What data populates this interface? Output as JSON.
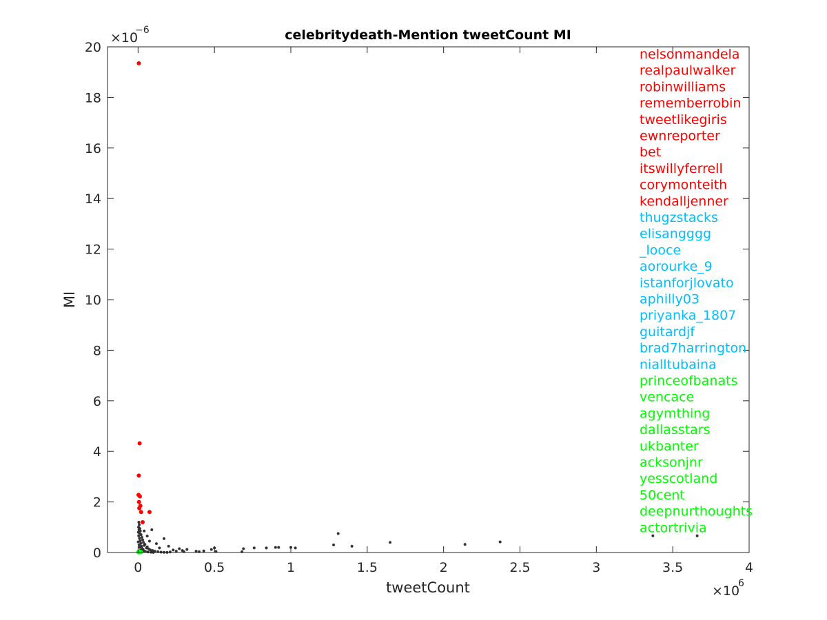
{
  "chart_data": {
    "type": "scatter",
    "title": "celebritydeath-Mention tweetCount MI",
    "xlabel": "tweetCount",
    "ylabel": "MI",
    "x_exponent_base": "×10",
    "x_exponent_power": "6",
    "y_exponent_base": "×10",
    "y_exponent_power": "−6",
    "xlim": [
      -200000,
      4000000
    ],
    "ylim": [
      0,
      2e-05
    ],
    "x_ticks": [
      0,
      500000,
      1000000,
      1500000,
      2000000,
      2500000,
      3000000,
      3500000,
      4000000
    ],
    "x_tick_labels": [
      "0",
      "0.5",
      "1",
      "1.5",
      "2",
      "2.5",
      "3",
      "3.5",
      "4"
    ],
    "y_ticks": [
      0,
      2e-06,
      4e-06,
      6e-06,
      8e-06,
      1e-05,
      1.2e-05,
      1.4e-05,
      1.6e-05,
      1.8e-05,
      2e-05
    ],
    "y_tick_labels": [
      "0",
      "2",
      "4",
      "6",
      "8",
      "10",
      "12",
      "14",
      "16",
      "18",
      "20"
    ],
    "grid": false,
    "colors": {
      "red": "#ff0000",
      "cyan": "#00bfff",
      "green": "#00ff00",
      "gray": "#333333"
    },
    "series": [
      {
        "color": "#333333",
        "points": [
          [
            5000,
            1.2e-06
          ],
          [
            8000,
            1.1e-06
          ],
          [
            3000,
            1e-06
          ],
          [
            12000,
            9.5e-07
          ],
          [
            6000,
            9e-07
          ],
          [
            15000,
            8.5e-07
          ],
          [
            2000,
            8e-07
          ],
          [
            10000,
            7.6e-07
          ],
          [
            20000,
            7e-07
          ],
          [
            4000,
            6.6e-07
          ],
          [
            25000,
            6e-07
          ],
          [
            9000,
            5.6e-07
          ],
          [
            30000,
            5e-07
          ],
          [
            14000,
            4.6e-07
          ],
          [
            1000,
            4.2e-07
          ],
          [
            35000,
            4e-07
          ],
          [
            18000,
            3.6e-07
          ],
          [
            45000,
            3.2e-07
          ],
          [
            7000,
            3e-07
          ],
          [
            40000,
            2.8e-07
          ],
          [
            22000,
            2.5e-07
          ],
          [
            60000,
            2.2e-07
          ],
          [
            11000,
            2e-07
          ],
          [
            55000,
            1.8e-07
          ],
          [
            27000,
            1.6e-07
          ],
          [
            70000,
            1.4e-07
          ],
          [
            33000,
            1.2e-07
          ],
          [
            80000,
            1e-07
          ],
          [
            16000,
            9e-08
          ],
          [
            95000,
            8e-08
          ],
          [
            38000,
            6e-08
          ],
          [
            110000,
            5e-08
          ],
          [
            48000,
            4e-08
          ],
          [
            130000,
            3e-08
          ],
          [
            65000,
            2e-08
          ],
          [
            150000,
            1.5e-08
          ],
          [
            85000,
            1e-08
          ],
          [
            170000,
            8e-09
          ],
          [
            100000,
            5e-09
          ],
          [
            190000,
            3e-09
          ],
          [
            40000,
            8.5e-07
          ],
          [
            60000,
            6.5e-07
          ],
          [
            90000,
            9e-07
          ],
          [
            75000,
            4.5e-07
          ],
          [
            120000,
            3.5e-07
          ],
          [
            170000,
            5.5e-07
          ],
          [
            140000,
            1.8e-07
          ],
          [
            200000,
            2.5e-07
          ],
          [
            230000,
            1e-07
          ],
          [
            250000,
            5e-08
          ],
          [
            270000,
            1.5e-07
          ],
          [
            290000,
            8e-08
          ],
          [
            320000,
            1.2e-07
          ],
          [
            300000,
            3e-08
          ],
          [
            210000,
            2e-08
          ],
          [
            380000,
            5e-08
          ],
          [
            400000,
            3e-08
          ],
          [
            430000,
            6e-08
          ],
          [
            480000,
            1.2e-07
          ],
          [
            500000,
            1.8e-07
          ],
          [
            510000,
            4e-08
          ],
          [
            680000,
            3e-08
          ],
          [
            690000,
            1.5e-07
          ],
          [
            760000,
            1.8e-07
          ],
          [
            840000,
            1.8e-07
          ],
          [
            900000,
            2e-07
          ],
          [
            920000,
            2e-07
          ],
          [
            1000000,
            2e-07
          ],
          [
            1030000,
            1.8e-07
          ],
          [
            1280000,
            3e-07
          ],
          [
            1310000,
            7.5e-07
          ],
          [
            1400000,
            2.5e-07
          ],
          [
            1650000,
            4e-07
          ],
          [
            2140000,
            3.2e-07
          ],
          [
            2370000,
            4.2e-07
          ],
          [
            3370000,
            6.6e-07
          ],
          [
            3660000,
            6.6e-07
          ]
        ]
      },
      {
        "color": "#ff0000",
        "points": [
          [
            5000,
            1.935e-05
          ],
          [
            10000,
            4.32e-06
          ],
          [
            5000,
            3.04e-06
          ],
          [
            3000,
            2.28e-06
          ],
          [
            12000,
            2.22e-06
          ],
          [
            6000,
            2e-06
          ],
          [
            15000,
            1.85e-06
          ],
          [
            8000,
            1.75e-06
          ],
          [
            20000,
            1.6e-06
          ],
          [
            75000,
            1.6e-06
          ],
          [
            30000,
            1.2e-06
          ]
        ]
      },
      {
        "color": "#00ff00",
        "points": [
          [
            1000,
            2e-08
          ],
          [
            3000,
            1e-08
          ],
          [
            5000,
            3e-08
          ],
          [
            7000,
            1e-08
          ],
          [
            9000,
            2e-08
          ],
          [
            11000,
            1e-08
          ],
          [
            13000,
            3e-08
          ],
          [
            15000,
            1e-08
          ],
          [
            17000,
            2e-08
          ],
          [
            19000,
            1e-08
          ]
        ]
      }
    ],
    "annotations": [
      {
        "text": "nelsonmandela",
        "color": "#ff0000"
      },
      {
        "text": "realpaulwalker",
        "color": "#ff0000"
      },
      {
        "text": "robinwilliams",
        "color": "#ff0000"
      },
      {
        "text": "rememberrobin",
        "color": "#ff0000"
      },
      {
        "text": "tweetlikegiris",
        "color": "#ff0000"
      },
      {
        "text": "ewnreporter",
        "color": "#ff0000"
      },
      {
        "text": "bet",
        "color": "#ff0000"
      },
      {
        "text": "itswillyferrell",
        "color": "#ff0000"
      },
      {
        "text": "corymonteith",
        "color": "#ff0000"
      },
      {
        "text": "kendalljenner",
        "color": "#ff0000"
      },
      {
        "text": "thugzstacks",
        "color": "#00bfff"
      },
      {
        "text": "elisangggg",
        "color": "#00bfff"
      },
      {
        "text": "_looce",
        "color": "#00bfff"
      },
      {
        "text": "aorourke_9",
        "color": "#00bfff"
      },
      {
        "text": "istanforjlovato",
        "color": "#00bfff"
      },
      {
        "text": "aphilly03",
        "color": "#00bfff"
      },
      {
        "text": "priyanka_1807",
        "color": "#00bfff"
      },
      {
        "text": "guitardjf",
        "color": "#00bfff"
      },
      {
        "text": "brad7harrington",
        "color": "#00bfff"
      },
      {
        "text": "nialltubaina",
        "color": "#00bfff"
      },
      {
        "text": "princeofbanats",
        "color": "#00ff00"
      },
      {
        "text": "vencace",
        "color": "#00ff00"
      },
      {
        "text": "agymthing",
        "color": "#00ff00"
      },
      {
        "text": "dallasstars",
        "color": "#00ff00"
      },
      {
        "text": "ukbanter",
        "color": "#00ff00"
      },
      {
        "text": "acksonjnr",
        "color": "#00ff00"
      },
      {
        "text": "yesscotland",
        "color": "#00ff00"
      },
      {
        "text": "50cent",
        "color": "#00ff00"
      },
      {
        "text": "deepnurthoughts",
        "color": "#00ff00"
      },
      {
        "text": "actortrivia",
        "color": "#00ff00"
      }
    ]
  }
}
